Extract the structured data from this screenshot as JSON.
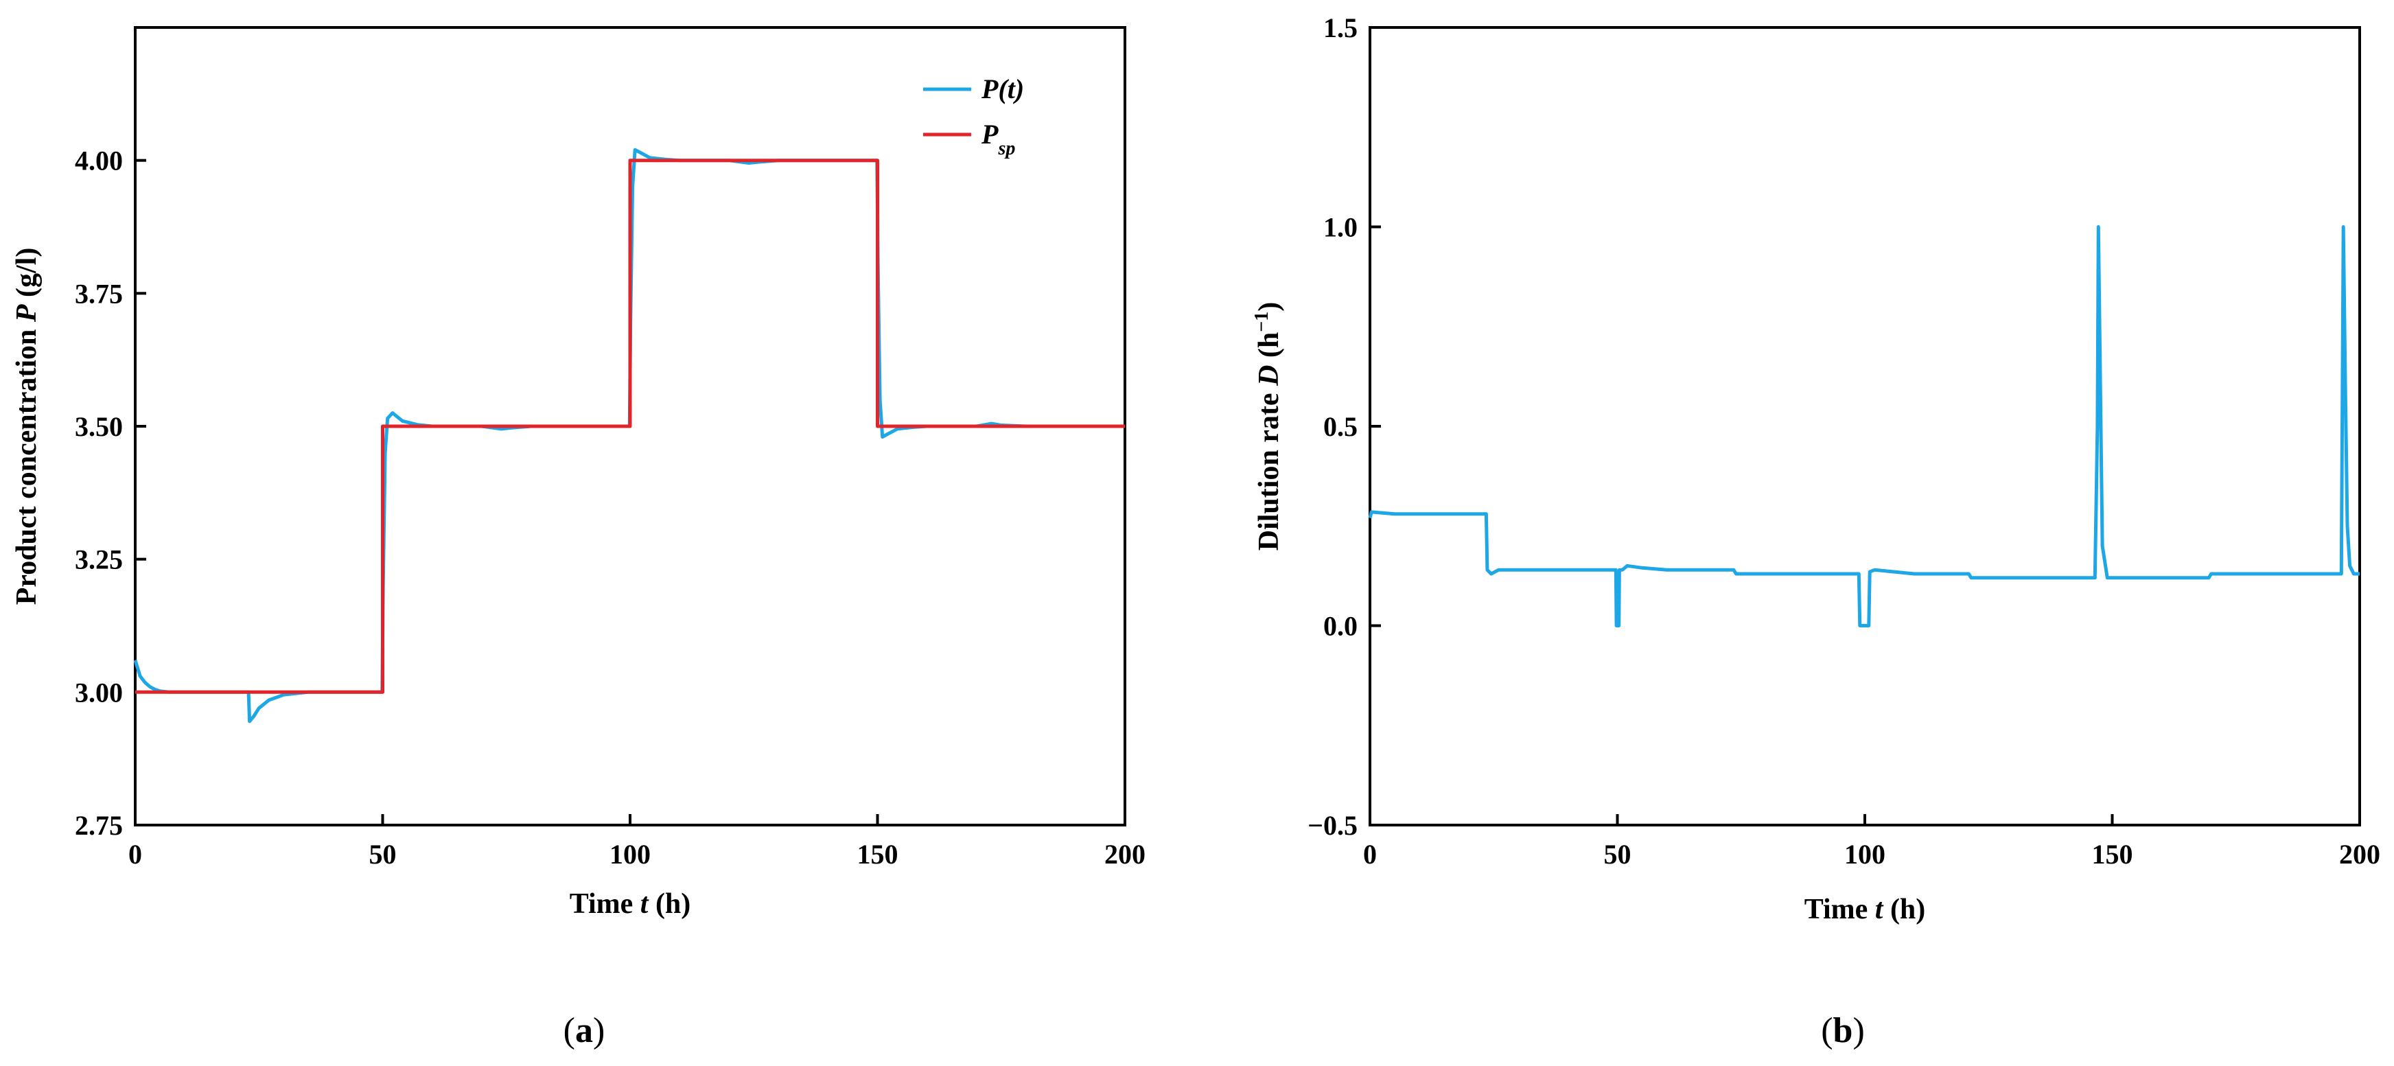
{
  "chart_data": [
    {
      "type": "line",
      "panel_label": "(a)",
      "xlabel_main": "Time ",
      "xlabel_var": "t",
      "xlabel_unit": " (h)",
      "ylabel_main": "Product concentration ",
      "ylabel_var": "P",
      "ylabel_unit": " (g/l)",
      "xlim": [
        0,
        200
      ],
      "ylim": [
        2.75,
        4.25
      ],
      "xticks": [
        0,
        50,
        100,
        150,
        200
      ],
      "xtick_labels": [
        "0",
        "50",
        "100",
        "150",
        "200"
      ],
      "yticks": [
        2.75,
        3.0,
        3.25,
        3.5,
        3.75,
        4.0
      ],
      "ytick_labels": [
        "2.75",
        "3.00",
        "3.25",
        "3.50",
        "3.75",
        "4.00"
      ],
      "grid": false,
      "legend": "top-right",
      "series": [
        {
          "name": "P(t)",
          "color": "#1ea7e6",
          "x": [
            0,
            0.5,
            1,
            2,
            3,
            4,
            5,
            7,
            10,
            15,
            20,
            22.9,
            23.1,
            24,
            25,
            27,
            30,
            35,
            40,
            45,
            49.9,
            50.1,
            50.5,
            51,
            52,
            54,
            57,
            60,
            65,
            70,
            74,
            76,
            80,
            90,
            99.9,
            100.1,
            100.5,
            101,
            102,
            104,
            107,
            110,
            115,
            120,
            124,
            126,
            130,
            140,
            149.9,
            150.1,
            150.5,
            151,
            152,
            154,
            157,
            160,
            165,
            170,
            173,
            175,
            180,
            190,
            200
          ],
          "y": [
            3.06,
            3.045,
            3.03,
            3.018,
            3.01,
            3.005,
            3.002,
            3.0,
            3.0,
            3.0,
            3.0,
            3.0,
            2.945,
            2.955,
            2.97,
            2.985,
            2.995,
            3.0,
            3.0,
            3.0,
            3.0,
            3.2,
            3.45,
            3.515,
            3.525,
            3.51,
            3.503,
            3.5,
            3.5,
            3.5,
            3.495,
            3.497,
            3.5,
            3.5,
            3.5,
            3.7,
            3.95,
            4.02,
            4.015,
            4.005,
            4.002,
            4.0,
            4.0,
            4.0,
            3.995,
            3.997,
            4.0,
            4.0,
            4.0,
            3.8,
            3.55,
            3.48,
            3.485,
            3.495,
            3.498,
            3.5,
            3.5,
            3.5,
            3.505,
            3.502,
            3.5,
            3.5,
            3.5
          ]
        },
        {
          "name": "P_sp",
          "color": "#e0262b",
          "x": [
            0,
            50,
            50,
            100,
            100,
            150,
            150,
            200
          ],
          "y": [
            3.0,
            3.0,
            3.5,
            3.5,
            4.0,
            4.0,
            3.5,
            3.5
          ]
        }
      ]
    },
    {
      "type": "line",
      "panel_label": "(b)",
      "xlabel_main": "Time ",
      "xlabel_var": "t",
      "xlabel_unit": " (h)",
      "ylabel_main": "Dilution rate ",
      "ylabel_var": "D",
      "ylabel_unit": " (h",
      "ylabel_exp": "−1",
      "ylabel_close": ")",
      "xlim": [
        0,
        200
      ],
      "ylim": [
        -0.5,
        1.5
      ],
      "xticks": [
        0,
        50,
        100,
        150,
        200
      ],
      "xtick_labels": [
        "0",
        "50",
        "100",
        "150",
        "200"
      ],
      "yticks": [
        -0.5,
        0.0,
        0.5,
        1.0,
        1.5
      ],
      "ytick_labels": [
        "−0.5",
        "0.0",
        "0.5",
        "1.0",
        "1.5"
      ],
      "grid": false,
      "series": [
        {
          "color": "#1ea7e6",
          "x": [
            0,
            0.3,
            5,
            10,
            15,
            20,
            23.5,
            23.7,
            24.5,
            26,
            30,
            40,
            49.5,
            49.7,
            49.8,
            50.3,
            50.4,
            51,
            52,
            55,
            60,
            70,
            73.5,
            74,
            80,
            90,
            98.8,
            99,
            100.8,
            101,
            102,
            110,
            121,
            121.5,
            130,
            140,
            146.5,
            147,
            147.2,
            147.7,
            148,
            149,
            150,
            155,
            160,
            169.5,
            170,
            180,
            190,
            196.3,
            196.7,
            197.1,
            197.5,
            198,
            198.8,
            200
          ],
          "y": [
            0.27,
            0.285,
            0.28,
            0.28,
            0.28,
            0.28,
            0.28,
            0.14,
            0.13,
            0.14,
            0.14,
            0.14,
            0.14,
            0.14,
            0.0,
            0.0,
            0.14,
            0.14,
            0.15,
            0.145,
            0.14,
            0.14,
            0.14,
            0.13,
            0.13,
            0.13,
            0.13,
            0.0,
            0.0,
            0.135,
            0.14,
            0.13,
            0.13,
            0.12,
            0.12,
            0.12,
            0.12,
            0.5,
            1.0,
            0.5,
            0.2,
            0.12,
            0.12,
            0.12,
            0.12,
            0.12,
            0.13,
            0.13,
            0.13,
            0.13,
            1.0,
            0.6,
            0.25,
            0.15,
            0.13,
            0.13
          ]
        }
      ]
    }
  ],
  "legend_a": {
    "pt_label": "P(t)",
    "psp_main": "P",
    "psp_sub": "sp"
  }
}
